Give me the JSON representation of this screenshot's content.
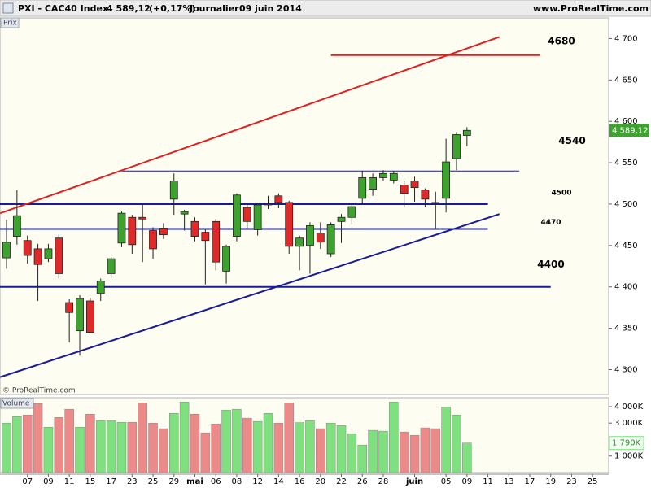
{
  "header": {
    "symbol": "PXI - CAC40 Index",
    "price": "4 589,12",
    "change": "(+0,17%)",
    "period": "Journalier",
    "date": "09 juin 2014",
    "site": "www.ProRealTime.com"
  },
  "chart_data": {
    "type": "candlestick",
    "panel_label": "Prix",
    "watermark": "© ProRealTime.com",
    "categories": [
      null,
      null,
      "07",
      null,
      "09",
      null,
      "11",
      null,
      "15",
      null,
      "17",
      null,
      "23",
      null,
      "25",
      null,
      "29",
      null,
      "mai",
      null,
      "06",
      null,
      "08",
      null,
      "12",
      null,
      "14",
      null,
      "16",
      null,
      "20",
      null,
      "22",
      null,
      "26",
      null,
      "28",
      null,
      null,
      "juin",
      null,
      null,
      "05",
      null,
      "09",
      null,
      "11",
      null,
      "13",
      null,
      "17",
      null,
      "19",
      null,
      "23",
      null,
      "25"
    ],
    "open": [
      4435,
      4461,
      4456,
      4446,
      4434,
      4459,
      4381,
      4347,
      4383,
      4392,
      4416,
      4453,
      4484,
      4484,
      4468,
      4471,
      4506,
      4488,
      4479,
      4466,
      4479,
      4419,
      4461,
      4496,
      4469,
      4499,
      4510,
      4502,
      4449,
      4450,
      4465,
      4440,
      4479,
      4484,
      4507,
      4518,
      4532,
      4529,
      4523,
      4528,
      4517,
      4502,
      4507,
      4555,
      4583,
      null,
      null,
      null,
      null,
      null,
      null,
      null,
      null,
      null,
      null,
      null,
      null
    ],
    "high": [
      4481,
      4517,
      4462,
      4452,
      4452,
      4463,
      4385,
      4390,
      4387,
      4410,
      4436,
      4491,
      4487,
      4500,
      4472,
      4477,
      4537,
      4493,
      4484,
      4470,
      4482,
      4451,
      4513,
      4500,
      4502,
      4510,
      4513,
      4504,
      4462,
      4478,
      4478,
      4478,
      4488,
      4500,
      4540,
      4537,
      4541,
      4540,
      4528,
      4533,
      4519,
      4515,
      4579,
      4587,
      4593,
      null,
      null,
      null,
      null,
      null,
      null,
      null,
      null,
      null,
      null,
      null,
      null
    ],
    "low": [
      4422,
      4451,
      4428,
      4383,
      4430,
      4410,
      4333,
      4317,
      4344,
      4383,
      4410,
      4448,
      4440,
      4430,
      4434,
      4458,
      4487,
      4468,
      4455,
      4403,
      4420,
      4404,
      4455,
      4470,
      4462,
      4494,
      4495,
      4440,
      4420,
      4416,
      4446,
      4436,
      4453,
      4475,
      4500,
      4510,
      4528,
      4525,
      4497,
      4503,
      4496,
      4470,
      4490,
      4541,
      4570,
      null,
      null,
      null,
      null,
      null,
      null,
      null,
      null,
      null,
      null,
      null,
      null
    ],
    "close": [
      4454,
      4486,
      4438,
      4427,
      4446,
      4416,
      4369,
      4386,
      4345,
      4407,
      4434,
      4489,
      4451,
      4482,
      4446,
      4463,
      4528,
      4491,
      4461,
      4456,
      4430,
      4449,
      4511,
      4479,
      4499,
      4500,
      4502,
      4449,
      4459,
      4474,
      4454,
      4475,
      4484,
      4497,
      4532,
      4532,
      4537,
      4537,
      4513,
      4520,
      4506,
      4501,
      4551,
      4584,
      4589.12,
      null,
      null,
      null,
      null,
      null,
      null,
      null,
      null,
      null,
      null,
      null,
      null
    ],
    "last_price": {
      "value": 4589.12,
      "label": "4 589,12"
    },
    "up_color": "#3da22e",
    "down_color": "#e02a2a",
    "ylim": [
      4270,
      4725
    ],
    "yticks": [
      {
        "value": 4300,
        "label": "4 300"
      },
      {
        "value": 4350,
        "label": "4 350"
      },
      {
        "value": 4400,
        "label": "4 400"
      },
      {
        "value": 4450,
        "label": "4 450"
      },
      {
        "value": 4500,
        "label": "4 500"
      },
      {
        "value": 4550,
        "label": "4 550"
      },
      {
        "value": 4600,
        "label": "4 600"
      },
      {
        "value": 4650,
        "label": "4 650"
      },
      {
        "value": 4700,
        "label": "4 700"
      }
    ],
    "levels": [
      {
        "value": 4680,
        "x_range": [
          31,
          51
        ],
        "color": "#e02020"
      },
      {
        "value": 4540,
        "x_range": [
          11,
          49
        ],
        "color": "#1a1a9a"
      },
      {
        "value": 4500,
        "x_range": [
          -0.7,
          46
        ],
        "color": "#1a1a9a"
      },
      {
        "value": 4470,
        "x_range": [
          -0.7,
          46
        ],
        "color": "#1a1a9a"
      },
      {
        "value": 4400,
        "x_range": [
          -0.7,
          52
        ],
        "color": "#1a1a9a"
      }
    ],
    "trendlines": [
      {
        "from": [
          -0.6,
          4489
        ],
        "to": [
          47.1,
          4702
        ],
        "color": "#e02020"
      },
      {
        "from": [
          -0.6,
          4291
        ],
        "to": [
          47.1,
          4488
        ],
        "color": "#1a1a9a"
      }
    ],
    "volume": {
      "label": "Volume",
      "values": [
        3000,
        3390,
        3490,
        4180,
        2750,
        3340,
        3840,
        2750,
        3540,
        3150,
        3150,
        3050,
        3050,
        4230,
        3000,
        2660,
        3590,
        4280,
        3540,
        2410,
        2950,
        3790,
        3840,
        3300,
        3100,
        3590,
        3000,
        4230,
        3030,
        3150,
        2660,
        3000,
        2850,
        2360,
        1670,
        2560,
        2510,
        4280,
        2460,
        2260,
        2710,
        2660,
        3980,
        3490,
        1790,
        null,
        null,
        null,
        null,
        null,
        null,
        null,
        null,
        null,
        null,
        null,
        null
      ],
      "last": {
        "value": 1790,
        "label": "1 790K"
      },
      "up_color": "#7ee07e",
      "down_color": "#ec8a8a",
      "ylim": [
        0,
        4540
      ],
      "yticks": [
        {
          "value": 1000,
          "label": "1 000K"
        },
        {
          "value": 3000,
          "label": "3 000K"
        },
        {
          "value": 4000,
          "label": "4 000K"
        }
      ]
    }
  }
}
